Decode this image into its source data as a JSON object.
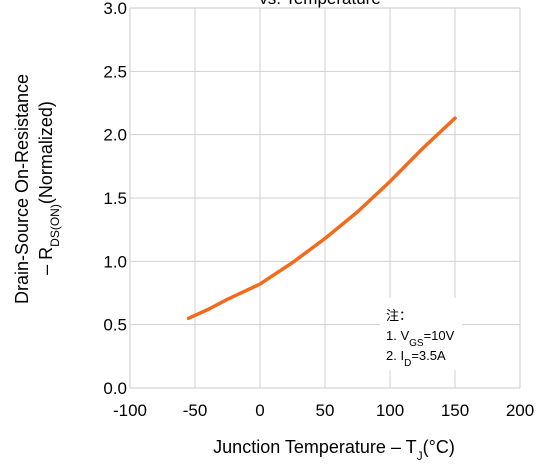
{
  "chart_data": {
    "type": "line",
    "title": "vs. Temperature",
    "xlabel": {
      "main": "Junction Temperature  –  T",
      "sub": "J",
      "tail": "(°C)"
    },
    "ylabel": {
      "line1": "Drain-Source On-Resistance",
      "line2_prefix": "–  R",
      "line2_sub": "DS(ON)",
      "line2_tail": "(Normalized)"
    },
    "xlim": [
      -100,
      200
    ],
    "ylim": [
      0.0,
      3.0
    ],
    "x_ticks": [
      "-100",
      "-50",
      "0",
      "50",
      "100",
      "150",
      "200"
    ],
    "y_ticks": [
      "0.0",
      "0.5",
      "1.0",
      "1.5",
      "2.0",
      "2.5",
      "3.0"
    ],
    "grid": true,
    "series": [
      {
        "color": "#F26B1D",
        "x": [
          -55,
          -40,
          -25,
          0,
          25,
          50,
          75,
          100,
          125,
          150
        ],
        "y": [
          0.55,
          0.62,
          0.7,
          0.82,
          0.99,
          1.18,
          1.39,
          1.63,
          1.89,
          2.13
        ]
      }
    ],
    "annotation": {
      "title": "注：",
      "line1_prefix": "1. V",
      "line1_sub": "GS",
      "line1_tail": "=10V",
      "line2_prefix": "2. I",
      "line2_sub": "D",
      "line2_tail": "=3.5A"
    }
  }
}
